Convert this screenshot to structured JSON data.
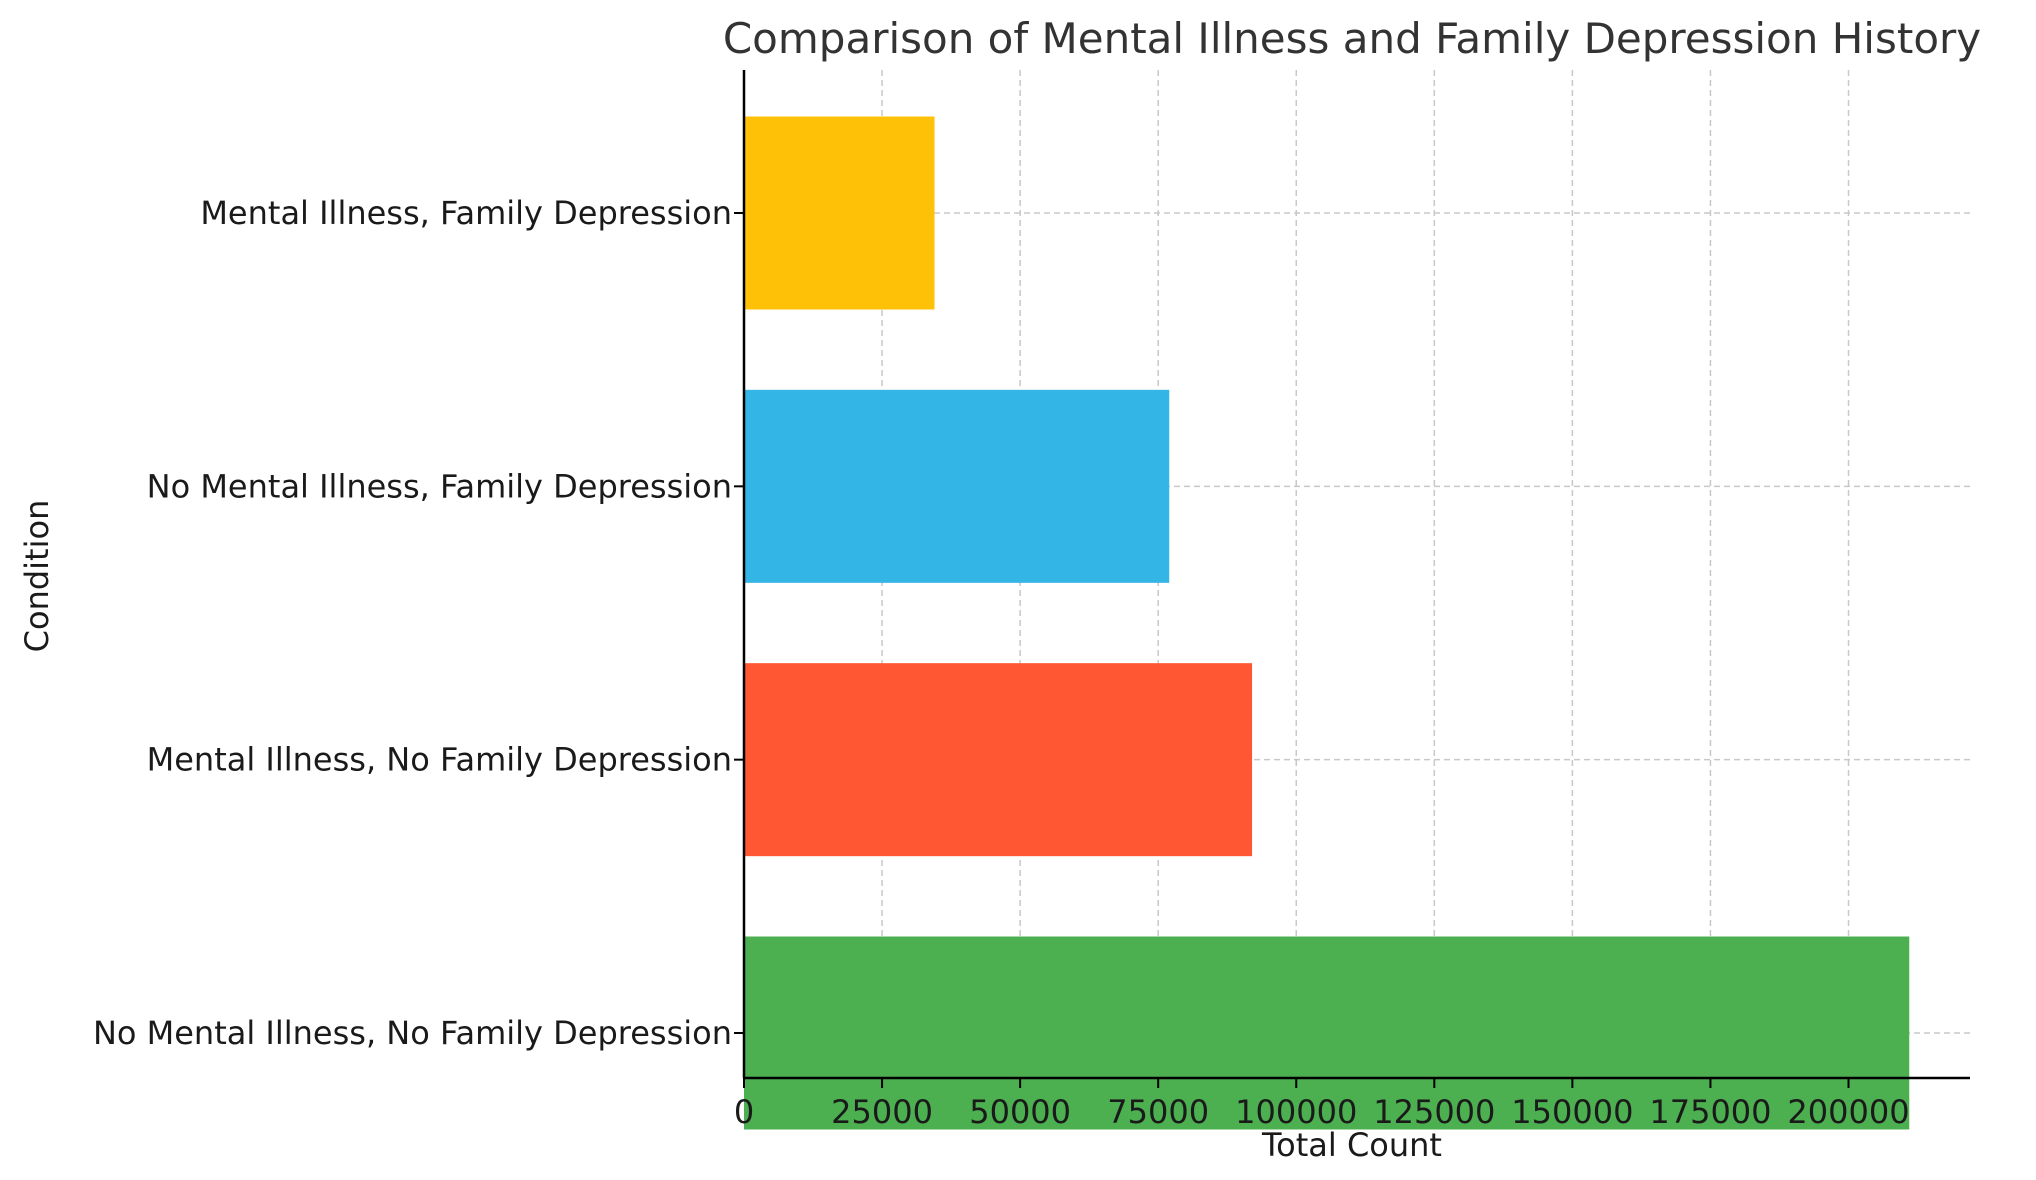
{
  "chart_data": {
    "type": "bar",
    "orientation": "horizontal",
    "title": "Comparison of Mental Illness and Family Depression History",
    "xlabel": "Total Count",
    "ylabel": "Condition",
    "categories": [
      "No Mental Illness, No Family Depression",
      "Mental Illness, No Family Depression",
      "No Mental Illness, Family Depression",
      "Mental Illness, Family Depression"
    ],
    "values": [
      211000,
      92000,
      77000,
      34500
    ],
    "colors": [
      "#4caf50",
      "#ff5733",
      "#33b5e5",
      "#ffc107"
    ],
    "xlim": [
      0,
      222000
    ],
    "xticks": [
      0,
      25000,
      50000,
      75000,
      100000,
      125000,
      150000,
      175000,
      200000
    ],
    "xtick_labels": [
      "0",
      "25000",
      "50000",
      "75000",
      "100000",
      "125000",
      "150000",
      "175000",
      "200000"
    ],
    "grid": true,
    "legend": false
  }
}
